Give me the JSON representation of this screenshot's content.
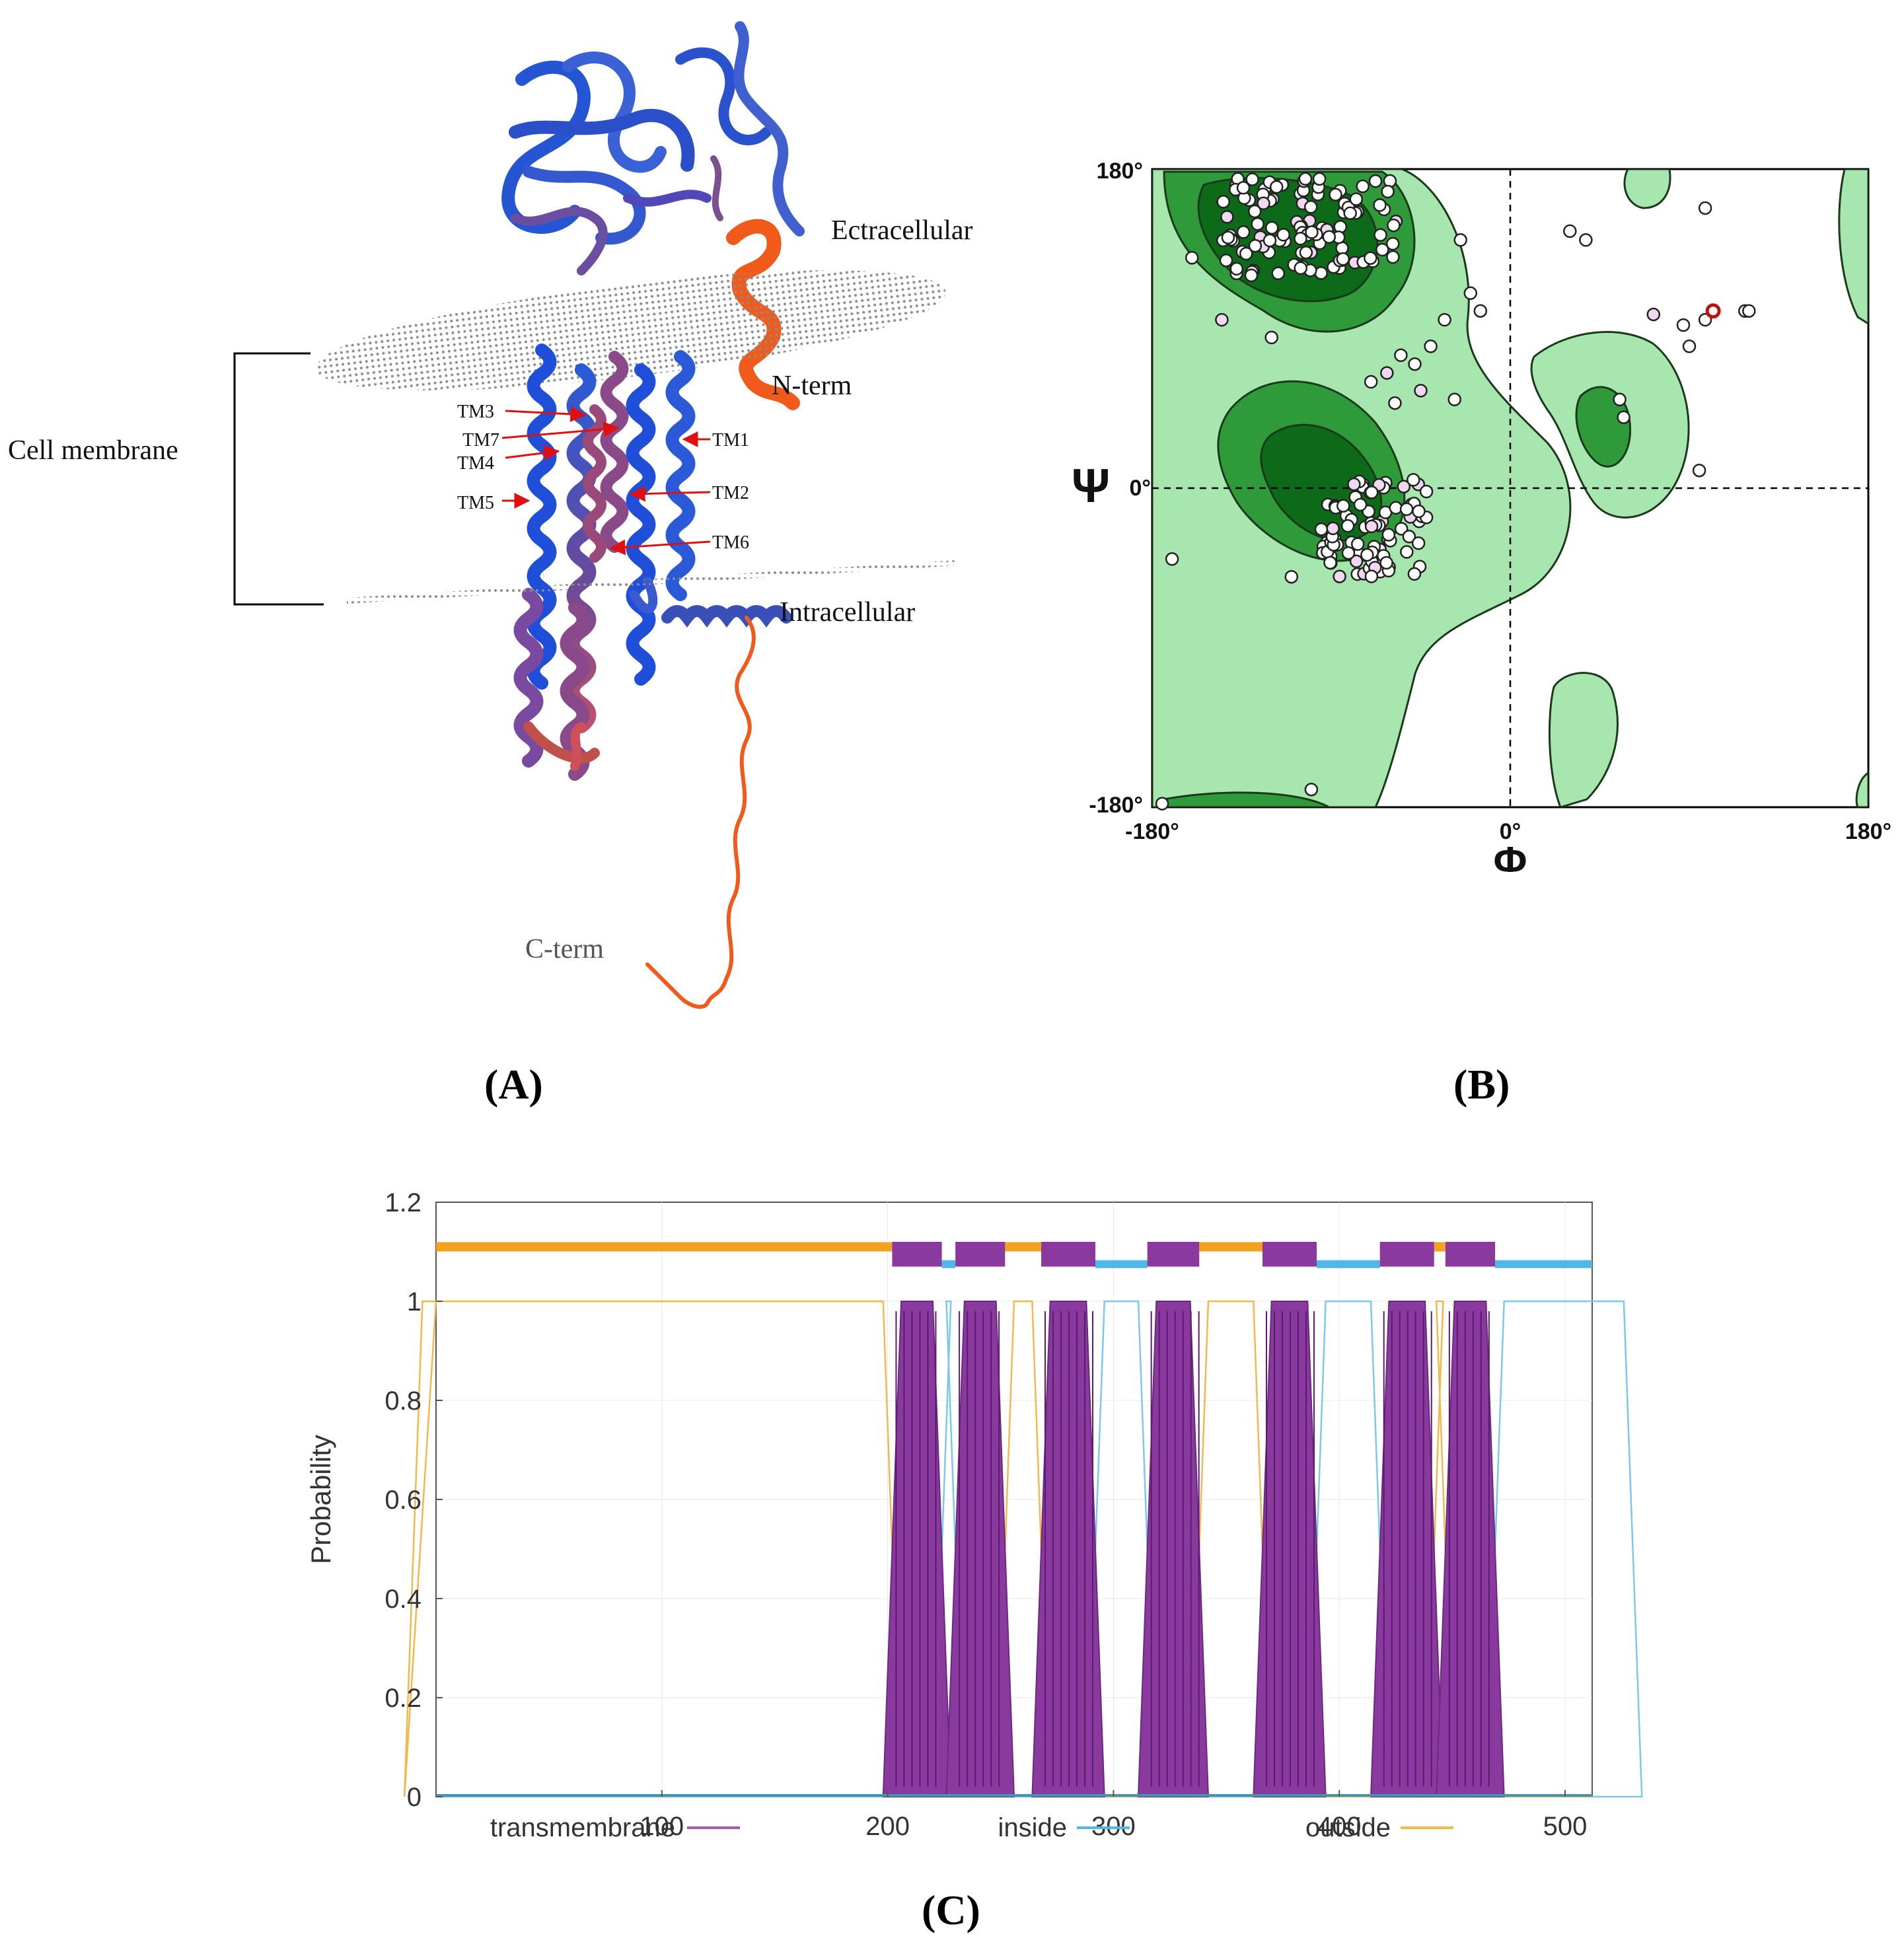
{
  "panel_a": {
    "label": "(A)",
    "labels": {
      "extracellular": "Ectracellular",
      "n_term": "N-term",
      "cell_membrane": "Cell membrane",
      "intracellular": "Intracellular",
      "c_term": "C-term",
      "tm": [
        "TM1",
        "TM2",
        "TM3",
        "TM4",
        "TM5",
        "TM6",
        "TM7"
      ]
    },
    "colors": {
      "helix_blue": "#1f4fd8",
      "helix_purple": "#8a4a8a",
      "terminus_orange": "#f05a1a",
      "membrane_gray": "#9a9a9a",
      "arrow_red": "#e01010"
    }
  },
  "panel_b": {
    "label": "(B)",
    "y_top": "180°",
    "y_zero": "0°",
    "y_bottom": "-180°",
    "x_left": "-180°",
    "x_zero": "0°",
    "x_right": "180°",
    "x_symbol": "Φ",
    "y_symbol": "Ψ",
    "colors": {
      "allowed": "#a8e6b0",
      "favored": "#2e9a3a",
      "core": "#0d6a18"
    }
  },
  "panel_c": {
    "label": "(C)",
    "colors": {
      "transmembrane": "#8a3a9e",
      "inside": "#4fb8e8",
      "outside": "#f2a21e"
    }
  },
  "chart_data": {
    "type": "line",
    "ylabel": "Probability",
    "xlabel": "",
    "xlim": [
      0,
      512
    ],
    "ylim": [
      0,
      1.2
    ],
    "yticks": [
      "0",
      "0.2",
      "0.4",
      "0.6",
      "0.8",
      "1",
      "1.2"
    ],
    "xticks": [
      "100",
      "200",
      "300",
      "400",
      "500"
    ],
    "legend": [
      "transmembrane",
      "inside",
      "outside"
    ],
    "legend_position": "bottom",
    "tm_segments": [
      [
        202,
        224
      ],
      [
        230,
        252
      ],
      [
        268,
        292
      ],
      [
        315,
        338
      ],
      [
        366,
        390
      ],
      [
        418,
        442
      ],
      [
        447,
        469
      ]
    ],
    "topology_track": {
      "outside": [
        [
          0,
          202
        ],
        [
          252,
          268
        ],
        [
          338,
          366
        ],
        [
          442,
          447
        ]
      ],
      "inside": [
        [
          224,
          230
        ],
        [
          292,
          315
        ],
        [
          390,
          418
        ],
        [
          469,
          512
        ]
      ]
    },
    "series": [
      {
        "name": "transmembrane",
        "values": "≈1 within tm_segments, ≈0 elsewhere"
      },
      {
        "name": "inside",
        "values": "≈1 within topology_track.inside, ≈0 elsewhere"
      },
      {
        "name": "outside",
        "values": "≈1 within topology_track.outside, ≈0 elsewhere"
      }
    ]
  }
}
